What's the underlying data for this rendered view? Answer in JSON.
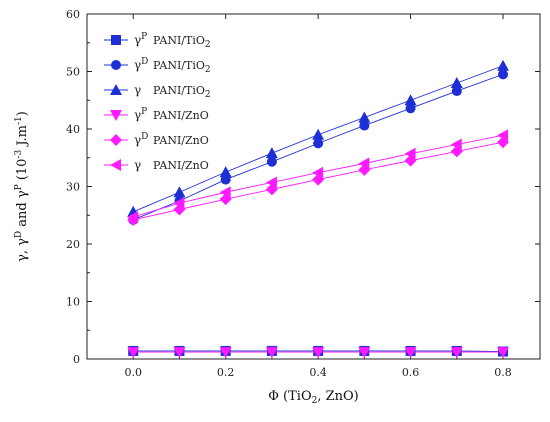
{
  "chart_data": {
    "type": "line",
    "xlabel": "Φ (TiO2, ZnO)",
    "ylabel": "γ, γD and γP (10-3 J.m-1)",
    "xlim": [
      -0.1,
      0.88
    ],
    "ylim": [
      0,
      60
    ],
    "xticks": [
      "0.0",
      "0.2",
      "0.4",
      "0.6",
      "0.8"
    ],
    "xtick_values": [
      0.0,
      0.2,
      0.4,
      0.6,
      0.8
    ],
    "yticks": [
      "0",
      "10",
      "20",
      "30",
      "40",
      "50",
      "60"
    ],
    "ytick_values": [
      0,
      10,
      20,
      30,
      40,
      50,
      60
    ],
    "grid": false,
    "legend_position": "top-left",
    "x": [
      0.0,
      0.1,
      0.2,
      0.3,
      0.4,
      0.5,
      0.6,
      0.7,
      0.8
    ],
    "series": [
      {
        "symbol": "γ",
        "sup": "P",
        "material": "PANI/TiO",
        "sub": "2",
        "color": "#1f2fd6",
        "marker": "square",
        "values": [
          1.4,
          1.4,
          1.4,
          1.4,
          1.4,
          1.4,
          1.4,
          1.4,
          1.3
        ]
      },
      {
        "symbol": "γ",
        "sup": "D",
        "material": "PANI/TiO",
        "sub": "2",
        "color": "#1f2fd6",
        "marker": "circle",
        "values": [
          24.2,
          27.5,
          31.2,
          34.3,
          37.5,
          40.6,
          43.6,
          46.6,
          49.5
        ]
      },
      {
        "symbol": "γ",
        "sup": "",
        "material": "PANI/TiO",
        "sub": "2",
        "color": "#1f2fd6",
        "marker": "triangle-up",
        "values": [
          25.6,
          29.0,
          32.5,
          35.8,
          39.0,
          42.0,
          45.0,
          48.0,
          51.0
        ]
      },
      {
        "symbol": "γ",
        "sup": "P",
        "material": "PANI/ZnO",
        "sub": "",
        "color": "#ff1aff",
        "marker": "triangle-down",
        "values": [
          1.2,
          1.2,
          1.2,
          1.2,
          1.2,
          1.2,
          1.2,
          1.2,
          1.2
        ]
      },
      {
        "symbol": "γ",
        "sup": "D",
        "material": "PANI/ZnO",
        "sub": "",
        "color": "#ff1aff",
        "marker": "diamond",
        "values": [
          24.2,
          26.0,
          27.8,
          29.5,
          31.2,
          32.9,
          34.5,
          36.1,
          37.7
        ]
      },
      {
        "symbol": "γ",
        "sup": "",
        "material": "PANI/ZnO",
        "sub": "",
        "color": "#ff1aff",
        "marker": "triangle-left",
        "values": [
          24.7,
          27.1,
          29.0,
          30.7,
          32.4,
          34.0,
          35.7,
          37.3,
          38.9
        ]
      }
    ]
  }
}
